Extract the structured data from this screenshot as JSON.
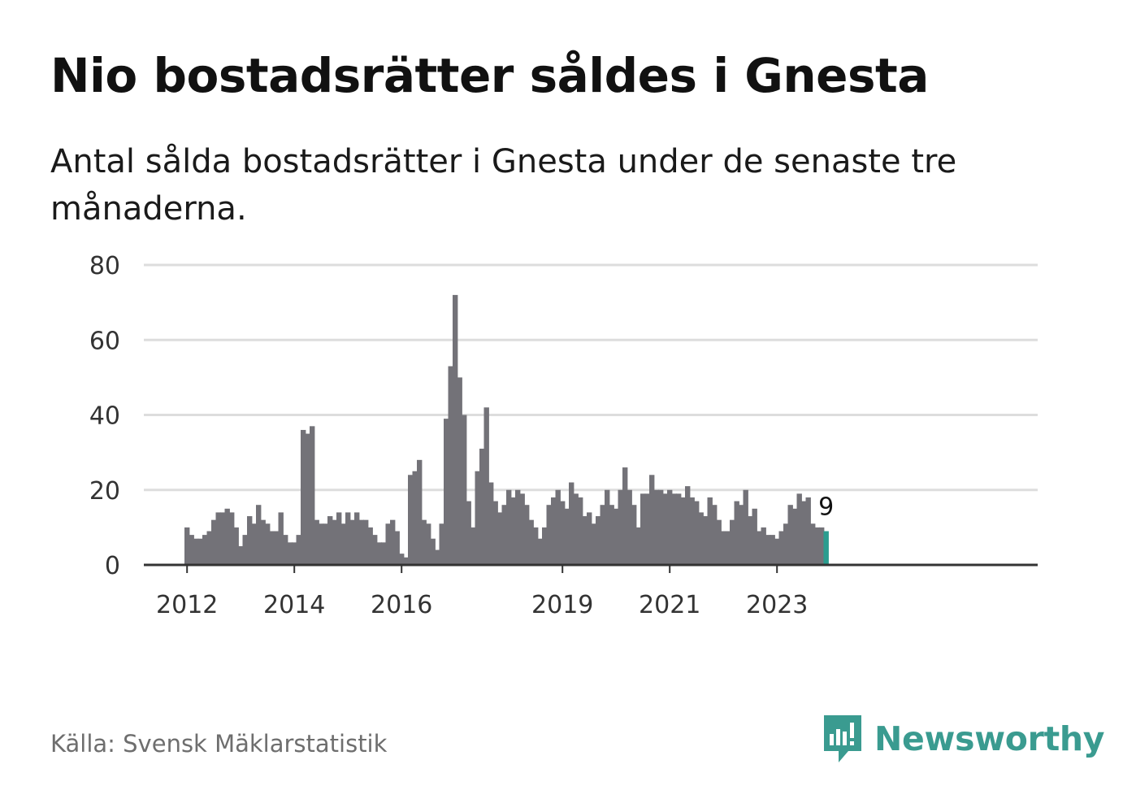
{
  "title": "Nio bostadsrätter såldes i Gnesta",
  "subtitle": "Antal sålda bostadsrätter i Gnesta under de senaste tre månaderna.",
  "source": "Källa: Svensk Mäklarstatistik",
  "brand": {
    "name": "Newsworthy",
    "icon": "newsworthy-logo-icon"
  },
  "colors": {
    "bar": "#737278",
    "highlight": "#2a9d8f",
    "grid": "#dddddd",
    "axis": "#333333",
    "brand": "#3a9b90"
  },
  "chart_data": {
    "type": "bar",
    "title": "Nio bostadsrätter såldes i Gnesta",
    "xlabel": "",
    "ylabel": "",
    "ylim": [
      0,
      80
    ],
    "yticks": [
      0,
      20,
      40,
      60,
      80
    ],
    "grid": true,
    "start": "2012-01",
    "x_tick_labels": [
      {
        "label": "2012",
        "index": 0
      },
      {
        "label": "2014",
        "index": 24
      },
      {
        "label": "2016",
        "index": 48
      },
      {
        "label": "2019",
        "index": 84
      },
      {
        "label": "2021",
        "index": 108
      },
      {
        "label": "2023",
        "index": 132
      }
    ],
    "values": [
      10,
      8,
      7,
      7,
      8,
      9,
      12,
      14,
      14,
      15,
      14,
      10,
      5,
      8,
      13,
      11,
      16,
      12,
      11,
      9,
      9,
      14,
      8,
      6,
      6,
      8,
      36,
      35,
      37,
      12,
      11,
      11,
      13,
      12,
      14,
      11,
      14,
      12,
      14,
      12,
      12,
      10,
      8,
      6,
      6,
      11,
      12,
      9,
      3,
      2,
      24,
      25,
      28,
      12,
      11,
      7,
      4,
      11,
      39,
      53,
      72,
      50,
      40,
      17,
      10,
      25,
      31,
      42,
      22,
      17,
      14,
      16,
      20,
      18,
      20,
      19,
      16,
      12,
      10,
      7,
      10,
      16,
      18,
      20,
      17,
      15,
      22,
      19,
      18,
      13,
      14,
      11,
      13,
      16,
      20,
      16,
      15,
      20,
      26,
      20,
      16,
      10,
      19,
      19,
      24,
      20,
      20,
      19,
      20,
      19,
      19,
      18,
      21,
      18,
      17,
      14,
      13,
      18,
      16,
      12,
      9,
      9,
      12,
      17,
      16,
      20,
      13,
      15,
      9,
      10,
      8,
      8,
      7,
      9,
      11,
      16,
      15,
      19,
      17,
      18,
      11,
      10,
      10,
      9
    ],
    "highlight_last": true,
    "last_value_label": "9"
  }
}
